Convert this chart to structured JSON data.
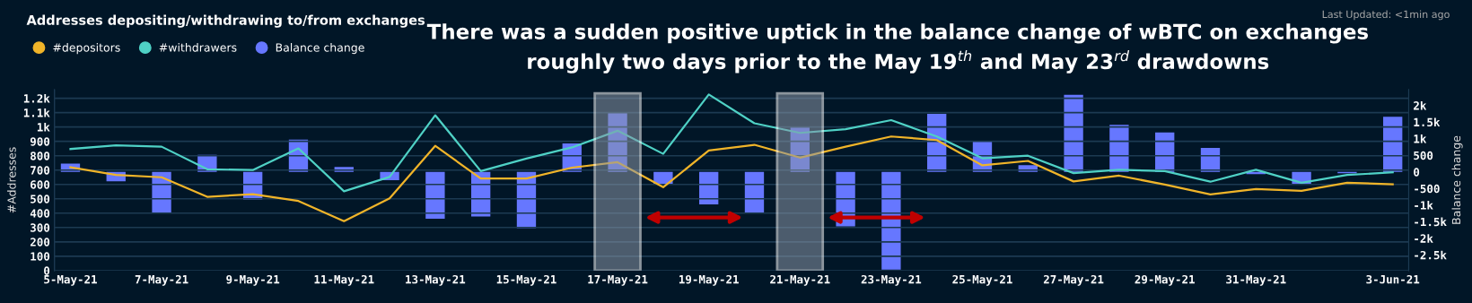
{
  "chart_data": {
    "type": "line",
    "title": "Addresses depositing/withdrawing to/from exchanges",
    "subtitle": "There was a sudden positive uptick in the balance change of wBTC on exchanges\nroughly two days prior to the May 19$^{th}$ and May 23$^{rd}$ drawdowns",
    "annotations": [
      "Last Updated: <1min ago"
    ],
    "ylabel": "#Addresses",
    "y2label": "Balance change",
    "categories": [
      "5-May-21",
      null,
      "7-May-21",
      null,
      "9-May-21",
      null,
      "11-May-21",
      null,
      "13-May-21",
      null,
      "15-May-21",
      null,
      "17-May-21",
      null,
      "19-May-21",
      null,
      "21-May-21",
      null,
      "23-May-21",
      null,
      "25-May-21",
      null,
      "27-May-21",
      null,
      "29-May-21",
      null,
      "31-May-21",
      null,
      null,
      "3-Jun-21"
    ],
    "series": [
      {
        "name": "#depositors",
        "color": "#f0b429",
        "values": [
          720,
          666,
          650,
          514,
          532,
          485,
          344,
          503,
          869,
          641,
          641,
          717,
          755,
          581,
          836,
          876,
          787,
          863,
          934,
          909,
          733,
          764,
          621,
          661,
          599,
          530,
          568,
          556,
          612,
          601
        ]
      },
      {
        "name": "#withdrawers",
        "color": "#4fd1c5",
        "values": [
          847,
          872,
          863,
          706,
          700,
          851,
          552,
          652,
          1082,
          693,
          780,
          858,
          974,
          813,
          1227,
          1026,
          959,
          985,
          1048,
          934,
          782,
          800,
          679,
          702,
          693,
          619,
          702,
          612,
          666,
          684
        ]
      },
      {
        "name": "Balance change",
        "type": "bar",
        "axis": "y2",
        "color": "#6677ff",
        "values": [
          250,
          -280,
          -1220,
          510,
          -830,
          970,
          150,
          -250,
          -1410,
          -1340,
          -1690,
          860,
          1790,
          -380,
          -980,
          -1230,
          1360,
          -1640,
          -2940,
          1750,
          930,
          200,
          2320,
          1420,
          1190,
          720,
          -70,
          -360,
          -40,
          1660
        ]
      }
    ],
    "ylim": [
      0,
      1260
    ],
    "yticks": [
      0,
      100,
      200,
      300,
      400,
      500,
      600,
      700,
      800,
      900,
      {
        "value": 1000,
        "label": "1k"
      },
      {
        "value": 1100,
        "label": "1.1k"
      },
      {
        "value": 1200,
        "label": "1.2k"
      }
    ],
    "y2lim": [
      -2970,
      2475
    ],
    "y2ticks": [
      {
        "value": -2500,
        "label": "-2.5k"
      },
      {
        "value": -2000,
        "label": "-2k"
      },
      {
        "value": -1500,
        "label": "-1.5k"
      },
      {
        "value": -1000,
        "label": "-1k"
      },
      -500,
      0,
      500,
      {
        "value": 1000,
        "label": "1k"
      },
      {
        "value": 1500,
        "label": "1.5k"
      },
      {
        "value": 2000,
        "label": "2k"
      }
    ],
    "bands": [
      {
        "axis": "x",
        "from": "17-May-21",
        "to": "17-May-21",
        "color": "#8a98a8"
      },
      {
        "axis": "x",
        "from": "21-May-21",
        "to": "21-May-21",
        "color": "#8a98a8"
      }
    ],
    "grid": "y",
    "legend": "top left",
    "marker": "none",
    "line_style": "solid"
  }
}
